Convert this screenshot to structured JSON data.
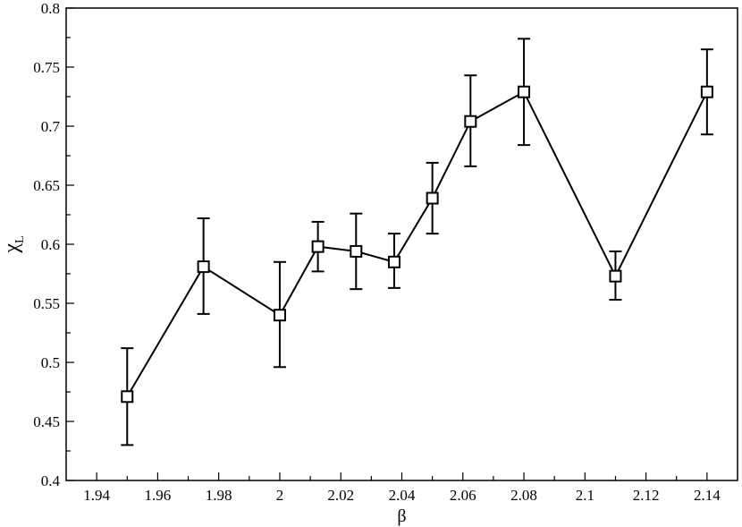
{
  "chart_data": {
    "type": "line",
    "title": "",
    "xlabel": "β",
    "ylabel": "χ",
    "ylabel_subscript": "L",
    "xlim": [
      1.93,
      2.15
    ],
    "ylim": [
      0.4,
      0.8
    ],
    "xticks": [
      1.94,
      1.96,
      1.98,
      2.0,
      2.02,
      2.04,
      2.06,
      2.08,
      2.1,
      2.12,
      2.14
    ],
    "xtick_labels": [
      "1.94",
      "1.96",
      "1.98",
      "2",
      "2.02",
      "2.04",
      "2.06",
      "2.08",
      "2.1",
      "2.12",
      "2.14"
    ],
    "yticks": [
      0.4,
      0.45,
      0.5,
      0.55,
      0.6,
      0.65,
      0.7,
      0.75,
      0.8
    ],
    "ytick_labels": [
      "0.4",
      "0.45",
      "0.5",
      "0.55",
      "0.6",
      "0.65",
      "0.7",
      "0.75",
      "0.8"
    ],
    "grid": false,
    "marker": "open-square",
    "color": "#000000",
    "series": [
      {
        "x": [
          1.95,
          1.975,
          2.0,
          2.0125,
          2.025,
          2.0375,
          2.05,
          2.0625,
          2.08,
          2.11,
          2.14
        ],
        "y": [
          0.471,
          0.581,
          0.54,
          0.598,
          0.594,
          0.585,
          0.639,
          0.704,
          0.729,
          0.573,
          0.729
        ],
        "yerr_low": [
          0.43,
          0.541,
          0.496,
          0.577,
          0.562,
          0.563,
          0.609,
          0.666,
          0.684,
          0.553,
          0.693
        ],
        "yerr_high": [
          0.512,
          0.622,
          0.585,
          0.619,
          0.626,
          0.609,
          0.669,
          0.743,
          0.774,
          0.594,
          0.765
        ]
      }
    ]
  }
}
